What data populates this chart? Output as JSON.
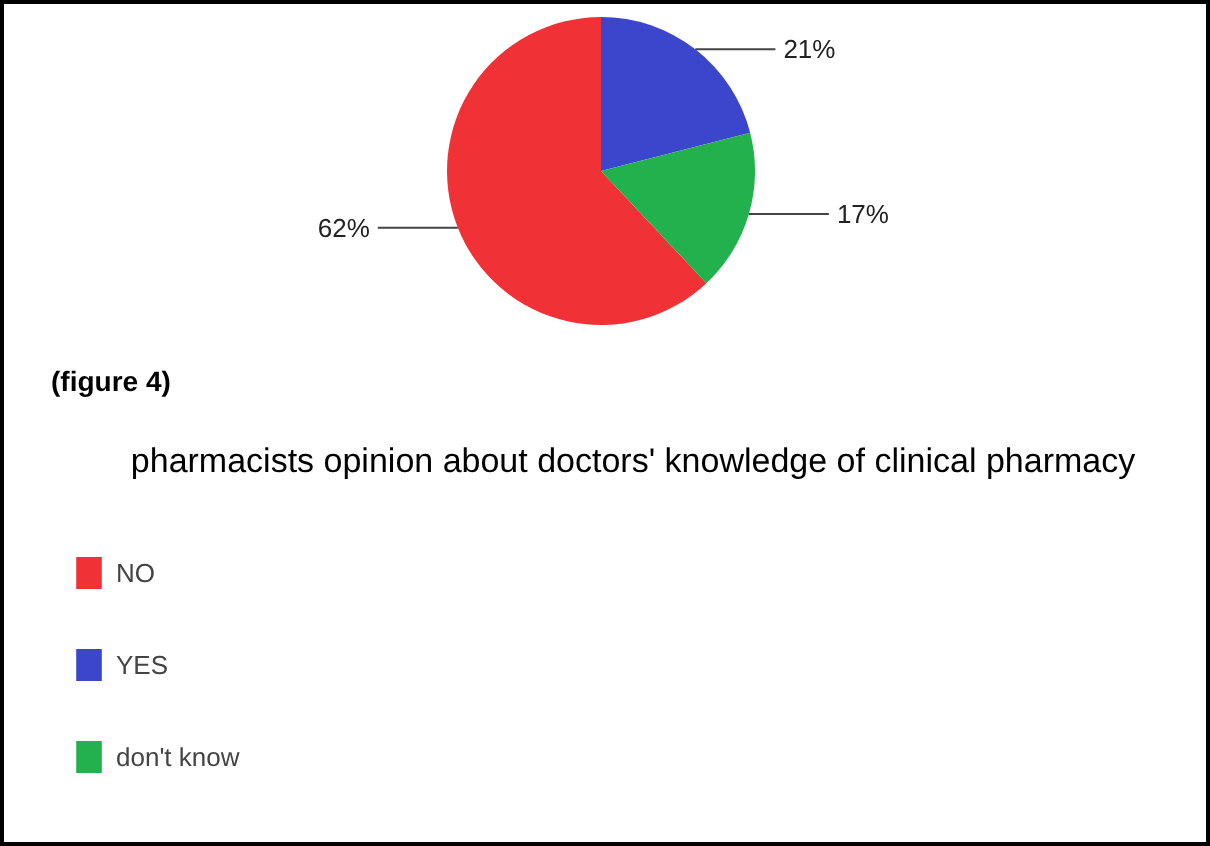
{
  "chart_data": {
    "type": "pie",
    "title": "(figure 4)",
    "subtitle": "pharmacists opinion about doctors' knowledge of clinical pharmacy",
    "categories": [
      "NO",
      "YES",
      "don't know"
    ],
    "values": [
      62,
      21,
      17
    ],
    "colors": [
      "#f03236",
      "#3c46cc",
      "#22b14c"
    ],
    "value_labels": [
      "62%",
      "21%",
      "17%"
    ],
    "legend": "bottom left"
  }
}
